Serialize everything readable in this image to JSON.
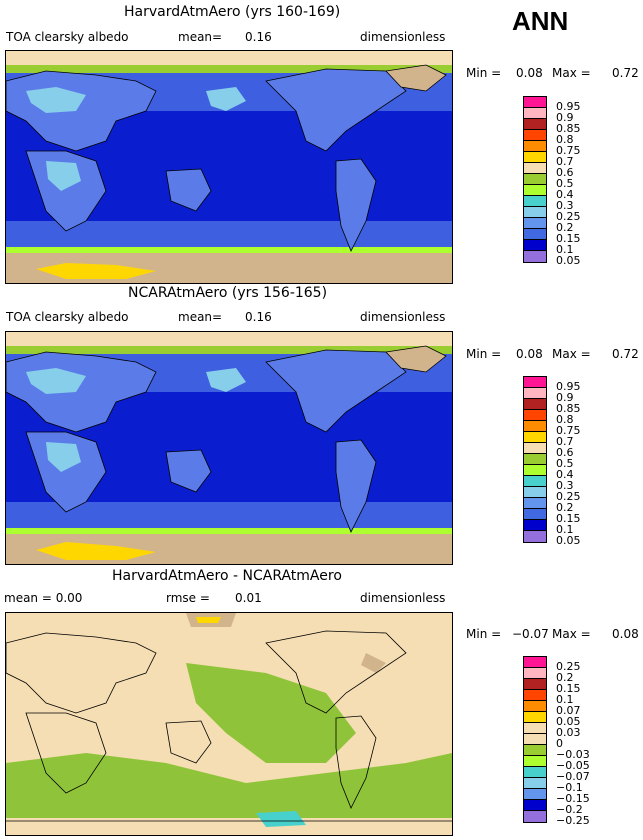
{
  "season": "ANN",
  "panels": [
    {
      "title": "HarvardAtmAero (yrs 160-169)",
      "left_label": "TOA clearsky albedo",
      "stat_label": "mean=",
      "stat_value": "0.16",
      "units": "dimensionless",
      "min_label": "Min =",
      "min_value": "0.08",
      "max_label": "Max =",
      "max_value": "0.72",
      "levels": [
        "0.95",
        "0.9",
        "0.85",
        "0.8",
        "0.75",
        "0.7",
        "0.6",
        "0.5",
        "0.4",
        "0.3",
        "0.25",
        "0.2",
        "0.15",
        "0.1",
        "0.05"
      ]
    },
    {
      "title": "NCARAtmAero (yrs 156-165)",
      "left_label": "TOA clearsky albedo",
      "stat_label": "mean=",
      "stat_value": "0.16",
      "units": "dimensionless",
      "min_label": "Min =",
      "min_value": "0.08",
      "max_label": "Max =",
      "max_value": "0.72",
      "levels": [
        "0.95",
        "0.9",
        "0.85",
        "0.8",
        "0.75",
        "0.7",
        "0.6",
        "0.5",
        "0.4",
        "0.3",
        "0.25",
        "0.2",
        "0.15",
        "0.1",
        "0.05"
      ]
    },
    {
      "title": "HarvardAtmAero - NCARAtmAero",
      "left_label": "mean =   0.00",
      "stat_label": "rmse =",
      "stat_value": "0.01",
      "units": "dimensionless",
      "min_label": "Min =",
      "min_value": "−0.07",
      "max_label": "Max =",
      "max_value": "0.08",
      "levels": [
        "0.25",
        "0.2",
        "0.15",
        "0.1",
        "0.07",
        "0.05",
        "0.03",
        "0",
        "−0.03",
        "−0.05",
        "−0.07",
        "−0.1",
        "−0.15",
        "−0.2",
        "−0.25"
      ]
    }
  ],
  "colorbar_colors": [
    "#ff1493",
    "#ffb6c1",
    "#b22222",
    "#ff4500",
    "#ff8c00",
    "#ffd700",
    "#f5deb3",
    "#9acd32",
    "#adff2f",
    "#48d1cc",
    "#87ceeb",
    "#6495ed",
    "#4169e1",
    "#0000cd",
    "#9370db"
  ],
  "colorbar_colors_diff": [
    "#ff1493",
    "#ffb6c1",
    "#b22222",
    "#ff4500",
    "#ff8c00",
    "#ffd700",
    "#f5deb3",
    "#f5deb3",
    "#9acd32",
    "#adff2f",
    "#48d1cc",
    "#87ceeb",
    "#6495ed",
    "#0000cd",
    "#9370db"
  ],
  "map_colors": {
    "ocean": "#0a1ecf",
    "ocean_mid": "#3e5fe0",
    "land_low": "#5b7ce8",
    "land_mid": "#87ceeb",
    "bright": "#9acd32",
    "light": "#adff2f",
    "ice": "#d2b48c",
    "ice_bright": "#ffd700",
    "diff_zero": "#f5deb3",
    "diff_neg": "#8fc43a",
    "diff_pos": "#d2b48c",
    "coast": "#000000"
  }
}
